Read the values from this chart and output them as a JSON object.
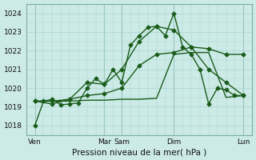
{
  "background_color": "#cceae6",
  "grid_color": "#aad4ce",
  "line_color": "#1a5c1a",
  "title": "Pression niveau de la mer( hPa )",
  "ylim": [
    1017.5,
    1024.5
  ],
  "yticks": [
    1018,
    1019,
    1020,
    1021,
    1022,
    1023,
    1024
  ],
  "xlim": [
    0,
    78
  ],
  "xtick_positions": [
    3,
    27,
    33,
    51,
    75
  ],
  "xtick_labels": [
    "Ven",
    "Mar",
    "Sam",
    "Dim",
    "Lun"
  ],
  "vline_positions": [
    3,
    27,
    33,
    51,
    75
  ],
  "series": [
    {
      "x": [
        3,
        6,
        9,
        12,
        15,
        18,
        21,
        24,
        27,
        30,
        33,
        36,
        39,
        42,
        45,
        48,
        51,
        54,
        57,
        60,
        63,
        66,
        69,
        72,
        75
      ],
      "y": [
        1018.0,
        1019.3,
        1019.4,
        1019.1,
        1019.15,
        1019.2,
        1020.0,
        1020.5,
        1020.2,
        1021.0,
        1020.3,
        1022.3,
        1022.8,
        1023.25,
        1023.3,
        1022.8,
        1024.0,
        1022.2,
        1021.8,
        1021.0,
        1019.15,
        1020.0,
        1019.9,
        1019.6,
        1019.6
      ],
      "marker": "D",
      "markersize": 2.5,
      "linewidth": 1.0,
      "linestyle": "-"
    },
    {
      "x": [
        3,
        9,
        15,
        21,
        27,
        33,
        39,
        45,
        51,
        57,
        63,
        69,
        75
      ],
      "y": [
        1019.3,
        1019.15,
        1019.4,
        1020.3,
        1020.2,
        1021.0,
        1022.5,
        1023.3,
        1023.1,
        1022.2,
        1021.0,
        1020.3,
        1019.6
      ],
      "marker": "D",
      "markersize": 2.5,
      "linewidth": 1.0,
      "linestyle": "-"
    },
    {
      "x": [
        3,
        9,
        15,
        21,
        27,
        33,
        39,
        45,
        51,
        57,
        63,
        69,
        75
      ],
      "y": [
        1019.3,
        1019.3,
        1019.4,
        1019.6,
        1019.7,
        1020.0,
        1021.2,
        1021.8,
        1021.9,
        1022.2,
        1022.1,
        1021.8,
        1021.8
      ],
      "marker": "D",
      "markersize": 2.5,
      "linewidth": 1.0,
      "linestyle": "-"
    },
    {
      "x": [
        3,
        9,
        15,
        21,
        27,
        33,
        39,
        45,
        51,
        57,
        63,
        69,
        75
      ],
      "y": [
        1019.3,
        1019.3,
        1019.3,
        1019.35,
        1019.35,
        1019.4,
        1019.4,
        1019.45,
        1021.8,
        1021.9,
        1021.9,
        1019.5,
        1019.6
      ],
      "marker": null,
      "markersize": 0,
      "linewidth": 1.0,
      "linestyle": "-"
    }
  ]
}
